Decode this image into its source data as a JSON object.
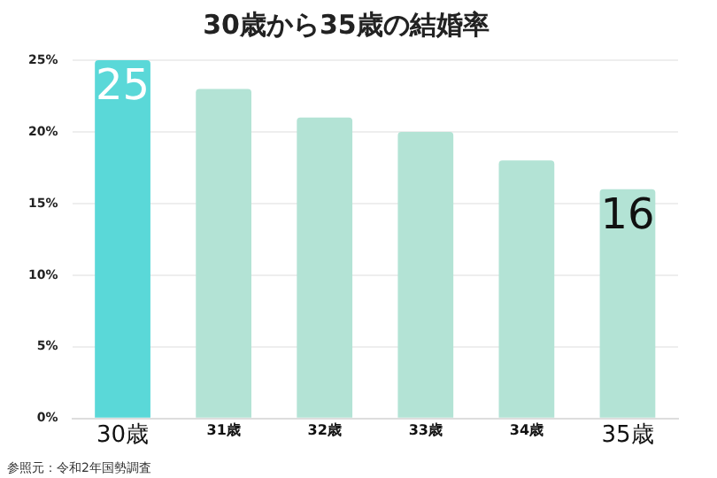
{
  "chart_data": {
    "type": "bar",
    "title": "30歳から35歳の結婚率",
    "categories": [
      "30歳",
      "31歳",
      "32歳",
      "33歳",
      "34歳",
      "35歳"
    ],
    "values": [
      25,
      23,
      21,
      20,
      18,
      16
    ],
    "colors": [
      "#5ad8d8",
      "#b3e3d5",
      "#b3e3d5",
      "#b3e3d5",
      "#b3e3d5",
      "#b3e3d5"
    ],
    "value_labels": [
      "25",
      null,
      null,
      null,
      null,
      "16"
    ],
    "ylim": [
      0,
      25
    ],
    "yticks": [
      {
        "value": 0,
        "label": "0%"
      },
      {
        "value": 5,
        "label": "5%"
      },
      {
        "value": 10,
        "label": "10%"
      },
      {
        "value": 15,
        "label": "15%"
      },
      {
        "value": 20,
        "label": "20%"
      },
      {
        "value": 25,
        "label": "25%"
      }
    ],
    "grid": "y",
    "annotations": [
      "参照元：令和2年国勢調査"
    ]
  }
}
